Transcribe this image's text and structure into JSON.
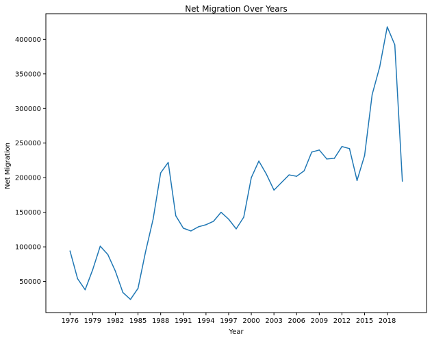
{
  "chart_data": {
    "type": "line",
    "title": "Net Migration Over Years",
    "xlabel": "Year",
    "ylabel": "Net Migration",
    "xlim": [
      1972.8,
      2023.2
    ],
    "ylim": [
      5000,
      437000
    ],
    "xticks": [
      1976,
      1979,
      1982,
      1985,
      1988,
      1991,
      1994,
      1997,
      2000,
      2003,
      2006,
      2009,
      2012,
      2015,
      2018
    ],
    "yticks": [
      50000,
      100000,
      150000,
      200000,
      250000,
      300000,
      350000,
      400000
    ],
    "ytick_labels": [
      "50000",
      "100000",
      "150000",
      "200000",
      "250000",
      "300000",
      "350000",
      "400000"
    ],
    "grid": false,
    "series": [
      {
        "color": "#1f77b4",
        "x": [
          1976,
          1977,
          1978,
          1979,
          1980,
          1981,
          1982,
          1983,
          1984,
          1985,
          1986,
          1987,
          1988,
          1989,
          1990,
          1991,
          1992,
          1993,
          1994,
          1995,
          1996,
          1997,
          1998,
          1999,
          2000,
          2001,
          2002,
          2003,
          2004,
          2005,
          2006,
          2007,
          2008,
          2009,
          2010,
          2011,
          2012,
          2013,
          2014,
          2015,
          2016,
          2017,
          2018,
          2019,
          2020
        ],
        "values": [
          94000,
          54000,
          38000,
          67000,
          101000,
          89000,
          65000,
          34000,
          24000,
          40000,
          93000,
          140000,
          207000,
          222000,
          145000,
          127000,
          123000,
          129000,
          132000,
          137000,
          150000,
          140000,
          126000,
          143000,
          200000,
          224000,
          205000,
          182000,
          193000,
          204000,
          202000,
          210000,
          237000,
          240000,
          227000,
          228000,
          245000,
          242000,
          196000,
          232000,
          320000,
          360000,
          418000,
          392000,
          195000
        ]
      }
    ]
  }
}
